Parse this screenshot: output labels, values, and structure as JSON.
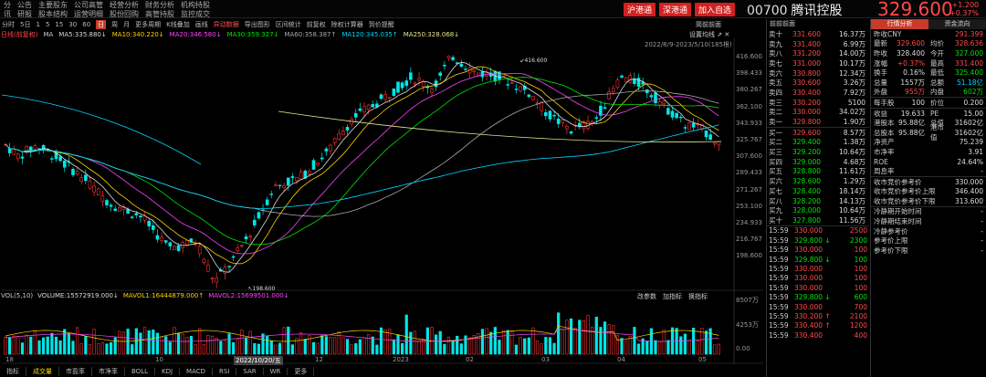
{
  "menu_row1": [
    "分",
    "公告",
    "主要股东",
    "公司高管",
    "经营分析",
    "财务分析",
    "机构持股"
  ],
  "menu_row2": [
    "讯",
    "研报",
    "股本结构",
    "运营明细",
    "股份回购",
    "高管持股",
    "监控成交"
  ],
  "market_buttons": [
    "沪港通",
    "深港通",
    "加入自选"
  ],
  "stock": {
    "code": "00700",
    "name": "腾讯控股",
    "price": "329.600",
    "change": "+1.200",
    "change_pct": "+0.37%"
  },
  "toolbar": [
    "分时",
    "5日",
    "1",
    "5",
    "15",
    "30",
    "60",
    "日",
    "周",
    "月",
    "更多周期",
    "K线叠加",
    "画线",
    "异动数据",
    "导出图形",
    "区间统计",
    "前复权",
    "除权计算器",
    "到价提醒"
  ],
  "toolbar_selected": "日",
  "toolbar_red": "异动数据",
  "ma_legend": {
    "prefix": "日线(前复权)",
    "items": [
      {
        "t": "MA",
        "c": "#ccc"
      },
      {
        "t": "MA5:335.880↓",
        "c": "#ddd"
      },
      {
        "t": "MA10:340.220↓",
        "c": "#ffd200"
      },
      {
        "t": "MA20:346.580↓",
        "c": "#ff44ff"
      },
      {
        "t": "MA30:359.327↓",
        "c": "#00e600"
      },
      {
        "t": "MA60:358.387↑",
        "c": "#aaa"
      },
      {
        "t": "MA120:345.035↑",
        "c": "#00d8ff"
      },
      {
        "t": "MA250:328.068↓",
        "c": "#e8e890"
      }
    ]
  },
  "right_toolbar": {
    "prev": "前前前面",
    "next": "简前前面"
  },
  "setting": "设置均线",
  "date_range": "2022/8/9-2023/5/10(185根)",
  "price_axis": [
    "416.600",
    "398.433",
    "380.267",
    "362.100",
    "343.933",
    "325.767",
    "307.600",
    "289.433",
    "271.267",
    "253.100",
    "234.933",
    "216.767",
    "198.600"
  ],
  "vol_axis": [
    "8507万",
    "4253万",
    "0.00"
  ],
  "high_label": "416.600",
  "low_label": "198.600",
  "x_labels": [
    "18",
    "10",
    "12",
    "2023",
    "02",
    "03",
    "04",
    "05"
  ],
  "x_highlight": "2022/10/20/五",
  "vol_legend": [
    {
      "t": "VOL(5,10)",
      "c": "#ccc"
    },
    {
      "t": "VOLUME:15572919.000↓",
      "c": "#ddd"
    },
    {
      "t": "MAVOL1:16444879.000↑",
      "c": "#ffd200"
    },
    {
      "t": "MAVOL2:15699501.000↓",
      "c": "#ff44ff"
    }
  ],
  "vol_tabs": [
    "改参数",
    "加指标",
    "换指标"
  ],
  "bottom_tabs": [
    "指标",
    "成交量",
    "市盈率",
    "市净率",
    "BOLL",
    "KDJ",
    "MACD",
    "RSI",
    "SAR",
    "WR",
    "更多"
  ],
  "bottom_selected": "成交量",
  "asks": [
    {
      "l": "卖十",
      "p": "331.600",
      "v": "16.37万"
    },
    {
      "l": "卖九",
      "p": "331.400",
      "v": "6.99万"
    },
    {
      "l": "卖八",
      "p": "331.200",
      "v": "14.00万"
    },
    {
      "l": "卖七",
      "p": "331.000",
      "v": "10.17万"
    },
    {
      "l": "卖六",
      "p": "330.800",
      "v": "12.34万"
    },
    {
      "l": "卖五",
      "p": "330.600",
      "v": "3.26万"
    },
    {
      "l": "卖四",
      "p": "330.400",
      "v": "7.92万"
    },
    {
      "l": "卖三",
      "p": "330.200",
      "v": "5100"
    },
    {
      "l": "卖二",
      "p": "330.000",
      "v": "34.02万"
    },
    {
      "l": "卖一",
      "p": "329.800",
      "v": "1.90万"
    }
  ],
  "bids": [
    {
      "l": "买一",
      "p": "329.600",
      "v": "8.57万"
    },
    {
      "l": "买二",
      "p": "329.400",
      "v": "1.38万"
    },
    {
      "l": "买三",
      "p": "329.200",
      "v": "10.64万"
    },
    {
      "l": "买四",
      "p": "329.000",
      "v": "4.68万"
    },
    {
      "l": "买五",
      "p": "328.800",
      "v": "11.61万"
    },
    {
      "l": "买六",
      "p": "328.600",
      "v": "1.29万"
    },
    {
      "l": "买七",
      "p": "328.400",
      "v": "18.14万"
    },
    {
      "l": "买八",
      "p": "328.200",
      "v": "14.13万"
    },
    {
      "l": "买九",
      "p": "328.000",
      "v": "10.64万"
    },
    {
      "l": "买十",
      "p": "327.800",
      "v": "11.56万"
    }
  ],
  "trades": [
    {
      "t": "15:59",
      "p": "330.000",
      "d": "",
      "v": "2500",
      "c": "red"
    },
    {
      "t": "15:59",
      "p": "329.800",
      "d": "↓",
      "v": "2300",
      "c": "grn"
    },
    {
      "t": "15:59",
      "p": "330.000",
      "d": "",
      "v": "100",
      "c": "red"
    },
    {
      "t": "15:59",
      "p": "329.800",
      "d": "↓",
      "v": "100",
      "c": "grn"
    },
    {
      "t": "15:59",
      "p": "330.000",
      "d": "",
      "v": "100",
      "c": "red"
    },
    {
      "t": "15:59",
      "p": "330.000",
      "d": "",
      "v": "100",
      "c": "red"
    },
    {
      "t": "15:59",
      "p": "330.000",
      "d": "",
      "v": "100",
      "c": "red"
    },
    {
      "t": "15:59",
      "p": "329.800",
      "d": "↓",
      "v": "600",
      "c": "grn"
    },
    {
      "t": "15:59",
      "p": "330.000",
      "d": "",
      "v": "700",
      "c": "red"
    },
    {
      "t": "15:59",
      "p": "330.200",
      "d": "↑",
      "v": "2100",
      "c": "red"
    },
    {
      "t": "15:59",
      "p": "330.400",
      "d": "↑",
      "v": "1200",
      "c": "red"
    },
    {
      "t": "15:59",
      "p": "330.400",
      "d": "",
      "v": "400",
      "c": "red"
    }
  ],
  "rp_tabs": [
    "行情分析",
    "资金流向"
  ],
  "rp": {
    "yesterday_label": "昨收CNY",
    "yesterday": "291.399",
    "rows3": [
      {
        "k": "最新",
        "v1": "329.600",
        "c1": "red",
        "k2": "均价",
        "v2": "328.636",
        "c2": "red"
      },
      {
        "k": "昨收",
        "v1": "328.400",
        "c1": "wht",
        "k2": "今开",
        "v2": "327.000",
        "c2": "grn"
      },
      {
        "k": "涨幅",
        "v1": "+0.37%",
        "c1": "red",
        "k2": "最高",
        "v2": "331.400",
        "c2": "red"
      },
      {
        "k": "换手",
        "v1": "0.16%",
        "c1": "wht",
        "k2": "最低",
        "v2": "325.400",
        "c2": "grn"
      },
      {
        "k": "总量",
        "v1": "1557万",
        "c1": "wht",
        "k2": "总额",
        "v2": "51.18亿",
        "c2": "cyn"
      },
      {
        "k": "外盘",
        "v1": "955万",
        "c1": "red",
        "k2": "内盘",
        "v2": "602万",
        "c2": "grn"
      }
    ],
    "lot_k": "每手股",
    "lot_v": "100",
    "unit_k": "价位",
    "unit_v": "0.200",
    "eps_k": "收益",
    "eps_v": "19.633",
    "pe_k": "PE",
    "pe_v": "15.00",
    "hk_k": "港股本",
    "hk_v": "95.88亿",
    "mc_k": "总值",
    "mc_v": "31602亿",
    "ts_k": "总股本",
    "ts_v": "95.88亿",
    "tmc_k": "港市值",
    "tmc_v": "31602亿",
    "nav_k": "净资产",
    "nav_v": "75.239",
    "pb_k": "市净率",
    "pb_v": "3.91",
    "roe_k": "ROE",
    "roe_v": "24.64%",
    "wk_k": "周息率",
    "wk_v": "-",
    "ref": [
      {
        "k": "收市竞价参考价",
        "v": "330.000"
      },
      {
        "k": "收市竞价参考价上限",
        "v": "346.400"
      },
      {
        "k": "收市竞价参考价下限",
        "v": "313.600"
      }
    ],
    "cool": [
      "冷静期开始时间",
      "冷静期结束时间",
      "冷静参考价",
      "参考价上限",
      "参考价下限"
    ],
    "cool_vals": [
      "-",
      "-",
      "-",
      "-",
      "-"
    ]
  },
  "chart_data": {
    "type": "candlestick",
    "ylim": [
      198.6,
      416.6
    ],
    "high": 416.6,
    "low": 198.6,
    "ma_colors": {
      "ma5": "#dddddd",
      "ma10": "#ffd200",
      "ma20": "#ff44ff",
      "ma30": "#00e600",
      "ma60": "#aaaaaa",
      "ma120": "#00d8ff",
      "ma250": "#e8e890"
    }
  }
}
